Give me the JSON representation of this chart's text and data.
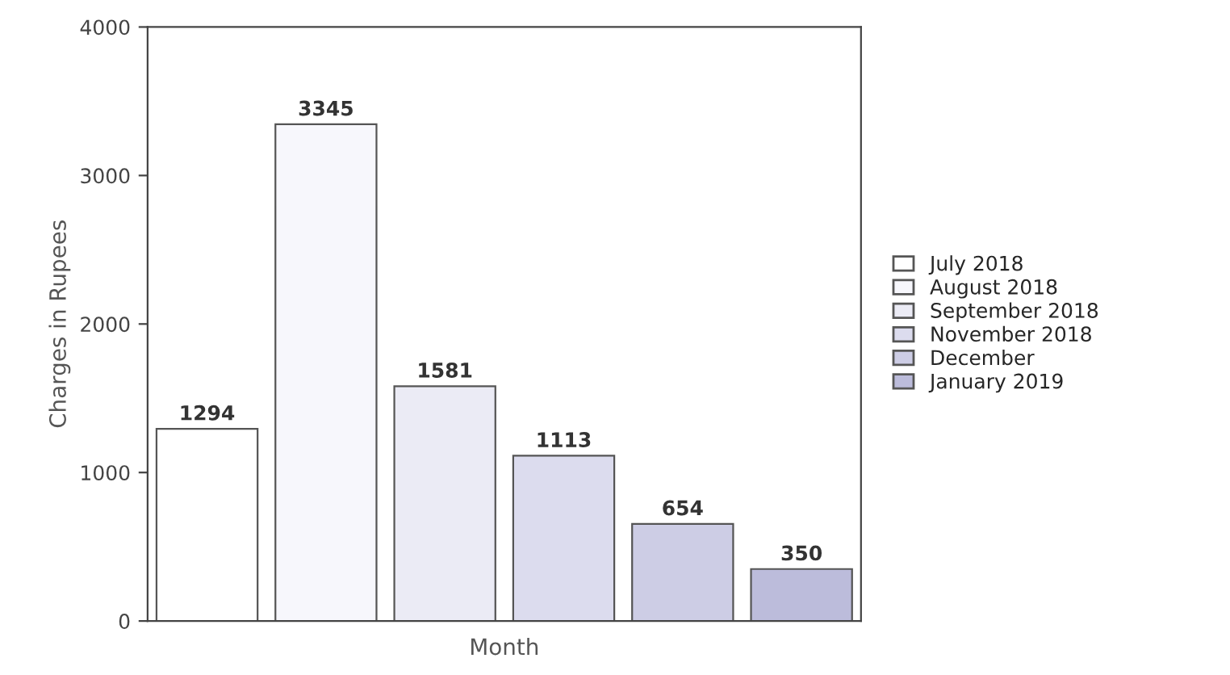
{
  "chart_data": {
    "type": "bar",
    "xlabel": "Month",
    "ylabel": "Charges in Rupees",
    "categories": [
      null,
      null,
      null,
      null,
      null,
      null
    ],
    "series": [
      {
        "name": "July 2018",
        "color": "#ffffff",
        "values": [
          1294,
          null,
          null,
          null,
          null,
          null
        ]
      },
      {
        "name": "August 2018",
        "color": "#f7f7fc",
        "values": [
          null,
          3345,
          null,
          null,
          null,
          null
        ]
      },
      {
        "name": "September 2018",
        "color": "#ebebf5",
        "values": [
          null,
          null,
          1581,
          null,
          null,
          null
        ]
      },
      {
        "name": "November 2018",
        "color": "#dcdcee",
        "values": [
          null,
          null,
          null,
          1113,
          null,
          null
        ]
      },
      {
        "name": "December",
        "color": "#cdcde5",
        "values": [
          null,
          null,
          null,
          null,
          654,
          null
        ]
      },
      {
        "name": "January 2019",
        "color": "#bcbcdb",
        "values": [
          null,
          null,
          null,
          null,
          null,
          350
        ]
      }
    ],
    "ylim": [
      0,
      4000
    ],
    "yticks": [
      0,
      1000,
      2000,
      3000,
      4000
    ],
    "grid": false,
    "legend": "right",
    "data_labels": true
  }
}
